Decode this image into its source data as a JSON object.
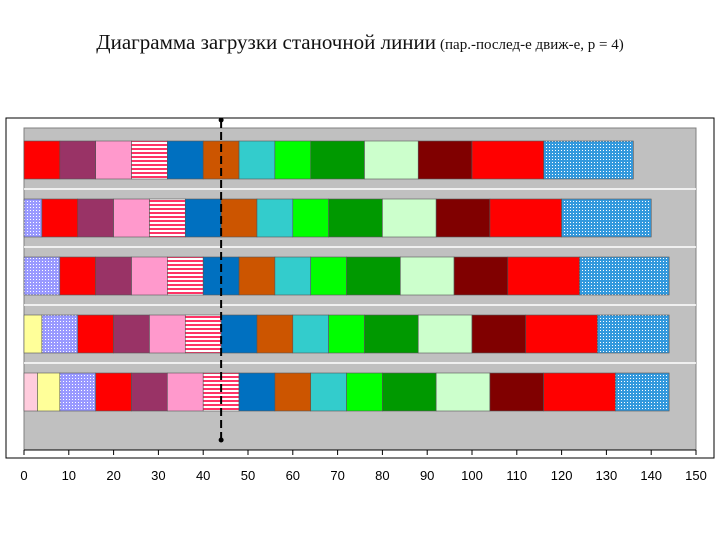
{
  "title": {
    "main": "Диаграмма загрузки станочной линии",
    "sub": "(пар.-послед-е движ-е, p = 4)"
  },
  "chart_data": {
    "type": "bar",
    "orientation": "horizontal-stacked",
    "xlim": [
      0,
      150
    ],
    "xticks": [
      0,
      10,
      20,
      30,
      40,
      50,
      60,
      70,
      80,
      90,
      100,
      110,
      120,
      130,
      140,
      150
    ],
    "grid": true,
    "legend": "none",
    "marker_line_x": 44,
    "rows": [
      {
        "segments": [
          {
            "start": 0,
            "end": 8,
            "color": "#ff0000",
            "pattern": "solid"
          },
          {
            "start": 8,
            "end": 16,
            "color": "#993366",
            "pattern": "solid"
          },
          {
            "start": 16,
            "end": 24,
            "color": "#ff99cc",
            "pattern": "solid"
          },
          {
            "start": 24,
            "end": 32,
            "color": "#ff3366",
            "pattern": "hstripe"
          },
          {
            "start": 32,
            "end": 40,
            "color": "#0070c0",
            "pattern": "solid"
          },
          {
            "start": 40,
            "end": 48,
            "color": "#cc5500",
            "pattern": "solid"
          },
          {
            "start": 48,
            "end": 56,
            "color": "#33cccc",
            "pattern": "solid"
          },
          {
            "start": 56,
            "end": 64,
            "color": "#00ff00",
            "pattern": "solid"
          },
          {
            "start": 64,
            "end": 76,
            "color": "#009900",
            "pattern": "solid"
          },
          {
            "start": 76,
            "end": 88,
            "color": "#ccffcc",
            "pattern": "solid"
          },
          {
            "start": 88,
            "end": 100,
            "color": "#800000",
            "pattern": "solid"
          },
          {
            "start": 100,
            "end": 116,
            "color": "#ff0000",
            "pattern": "solid"
          },
          {
            "start": 116,
            "end": 136,
            "color": "#3399dd",
            "pattern": "dots"
          }
        ]
      },
      {
        "segments": [
          {
            "start": 0,
            "end": 4,
            "color": "#9999ff",
            "pattern": "dots"
          },
          {
            "start": 4,
            "end": 12,
            "color": "#ff0000",
            "pattern": "solid"
          },
          {
            "start": 12,
            "end": 20,
            "color": "#993366",
            "pattern": "solid"
          },
          {
            "start": 20,
            "end": 28,
            "color": "#ff99cc",
            "pattern": "solid"
          },
          {
            "start": 28,
            "end": 36,
            "color": "#ff3366",
            "pattern": "hstripe"
          },
          {
            "start": 36,
            "end": 44,
            "color": "#0070c0",
            "pattern": "solid"
          },
          {
            "start": 44,
            "end": 52,
            "color": "#cc5500",
            "pattern": "solid"
          },
          {
            "start": 52,
            "end": 60,
            "color": "#33cccc",
            "pattern": "solid"
          },
          {
            "start": 60,
            "end": 68,
            "color": "#00ff00",
            "pattern": "solid"
          },
          {
            "start": 68,
            "end": 80,
            "color": "#009900",
            "pattern": "solid"
          },
          {
            "start": 80,
            "end": 92,
            "color": "#ccffcc",
            "pattern": "solid"
          },
          {
            "start": 92,
            "end": 104,
            "color": "#800000",
            "pattern": "solid"
          },
          {
            "start": 104,
            "end": 120,
            "color": "#ff0000",
            "pattern": "solid"
          },
          {
            "start": 120,
            "end": 140,
            "color": "#3399dd",
            "pattern": "dots"
          }
        ]
      },
      {
        "segments": [
          {
            "start": 0,
            "end": 8,
            "color": "#9999ff",
            "pattern": "dots"
          },
          {
            "start": 8,
            "end": 16,
            "color": "#ff0000",
            "pattern": "solid"
          },
          {
            "start": 16,
            "end": 24,
            "color": "#993366",
            "pattern": "solid"
          },
          {
            "start": 24,
            "end": 32,
            "color": "#ff99cc",
            "pattern": "solid"
          },
          {
            "start": 32,
            "end": 40,
            "color": "#ff3366",
            "pattern": "hstripe"
          },
          {
            "start": 40,
            "end": 48,
            "color": "#0070c0",
            "pattern": "solid"
          },
          {
            "start": 48,
            "end": 56,
            "color": "#cc5500",
            "pattern": "solid"
          },
          {
            "start": 56,
            "end": 64,
            "color": "#33cccc",
            "pattern": "solid"
          },
          {
            "start": 64,
            "end": 72,
            "color": "#00ff00",
            "pattern": "solid"
          },
          {
            "start": 72,
            "end": 84,
            "color": "#009900",
            "pattern": "solid"
          },
          {
            "start": 84,
            "end": 96,
            "color": "#ccffcc",
            "pattern": "solid"
          },
          {
            "start": 96,
            "end": 108,
            "color": "#800000",
            "pattern": "solid"
          },
          {
            "start": 108,
            "end": 124,
            "color": "#ff0000",
            "pattern": "solid"
          },
          {
            "start": 124,
            "end": 144,
            "color": "#3399dd",
            "pattern": "dots"
          }
        ]
      },
      {
        "segments": [
          {
            "start": 0,
            "end": 4,
            "color": "#ffff99",
            "pattern": "solid"
          },
          {
            "start": 4,
            "end": 12,
            "color": "#9999ff",
            "pattern": "dots"
          },
          {
            "start": 12,
            "end": 20,
            "color": "#ff0000",
            "pattern": "solid"
          },
          {
            "start": 20,
            "end": 28,
            "color": "#993366",
            "pattern": "solid"
          },
          {
            "start": 28,
            "end": 36,
            "color": "#ff99cc",
            "pattern": "solid"
          },
          {
            "start": 36,
            "end": 44,
            "color": "#ff3366",
            "pattern": "hstripe"
          },
          {
            "start": 44,
            "end": 52,
            "color": "#0070c0",
            "pattern": "solid"
          },
          {
            "start": 52,
            "end": 60,
            "color": "#cc5500",
            "pattern": "solid"
          },
          {
            "start": 60,
            "end": 68,
            "color": "#33cccc",
            "pattern": "solid"
          },
          {
            "start": 68,
            "end": 76,
            "color": "#00ff00",
            "pattern": "solid"
          },
          {
            "start": 76,
            "end": 88,
            "color": "#009900",
            "pattern": "solid"
          },
          {
            "start": 88,
            "end": 100,
            "color": "#ccffcc",
            "pattern": "solid"
          },
          {
            "start": 100,
            "end": 112,
            "color": "#800000",
            "pattern": "solid"
          },
          {
            "start": 112,
            "end": 128,
            "color": "#ff0000",
            "pattern": "solid"
          },
          {
            "start": 128,
            "end": 144,
            "color": "#3399dd",
            "pattern": "dots"
          }
        ]
      },
      {
        "segments": [
          {
            "start": 0,
            "end": 3,
            "color": "#ffccdd",
            "pattern": "solid"
          },
          {
            "start": 3,
            "end": 8,
            "color": "#ffff99",
            "pattern": "solid"
          },
          {
            "start": 8,
            "end": 16,
            "color": "#9999ff",
            "pattern": "dots"
          },
          {
            "start": 16,
            "end": 24,
            "color": "#ff0000",
            "pattern": "solid"
          },
          {
            "start": 24,
            "end": 32,
            "color": "#993366",
            "pattern": "solid"
          },
          {
            "start": 32,
            "end": 40,
            "color": "#ff99cc",
            "pattern": "solid"
          },
          {
            "start": 40,
            "end": 48,
            "color": "#ff3366",
            "pattern": "hstripe"
          },
          {
            "start": 48,
            "end": 56,
            "color": "#0070c0",
            "pattern": "solid"
          },
          {
            "start": 56,
            "end": 64,
            "color": "#cc5500",
            "pattern": "solid"
          },
          {
            "start": 64,
            "end": 72,
            "color": "#33cccc",
            "pattern": "solid"
          },
          {
            "start": 72,
            "end": 80,
            "color": "#00ff00",
            "pattern": "solid"
          },
          {
            "start": 80,
            "end": 92,
            "color": "#009900",
            "pattern": "solid"
          },
          {
            "start": 92,
            "end": 104,
            "color": "#ccffcc",
            "pattern": "solid"
          },
          {
            "start": 104,
            "end": 116,
            "color": "#800000",
            "pattern": "solid"
          },
          {
            "start": 116,
            "end": 132,
            "color": "#ff0000",
            "pattern": "solid"
          },
          {
            "start": 132,
            "end": 144,
            "color": "#3399dd",
            "pattern": "dots"
          }
        ]
      }
    ]
  }
}
